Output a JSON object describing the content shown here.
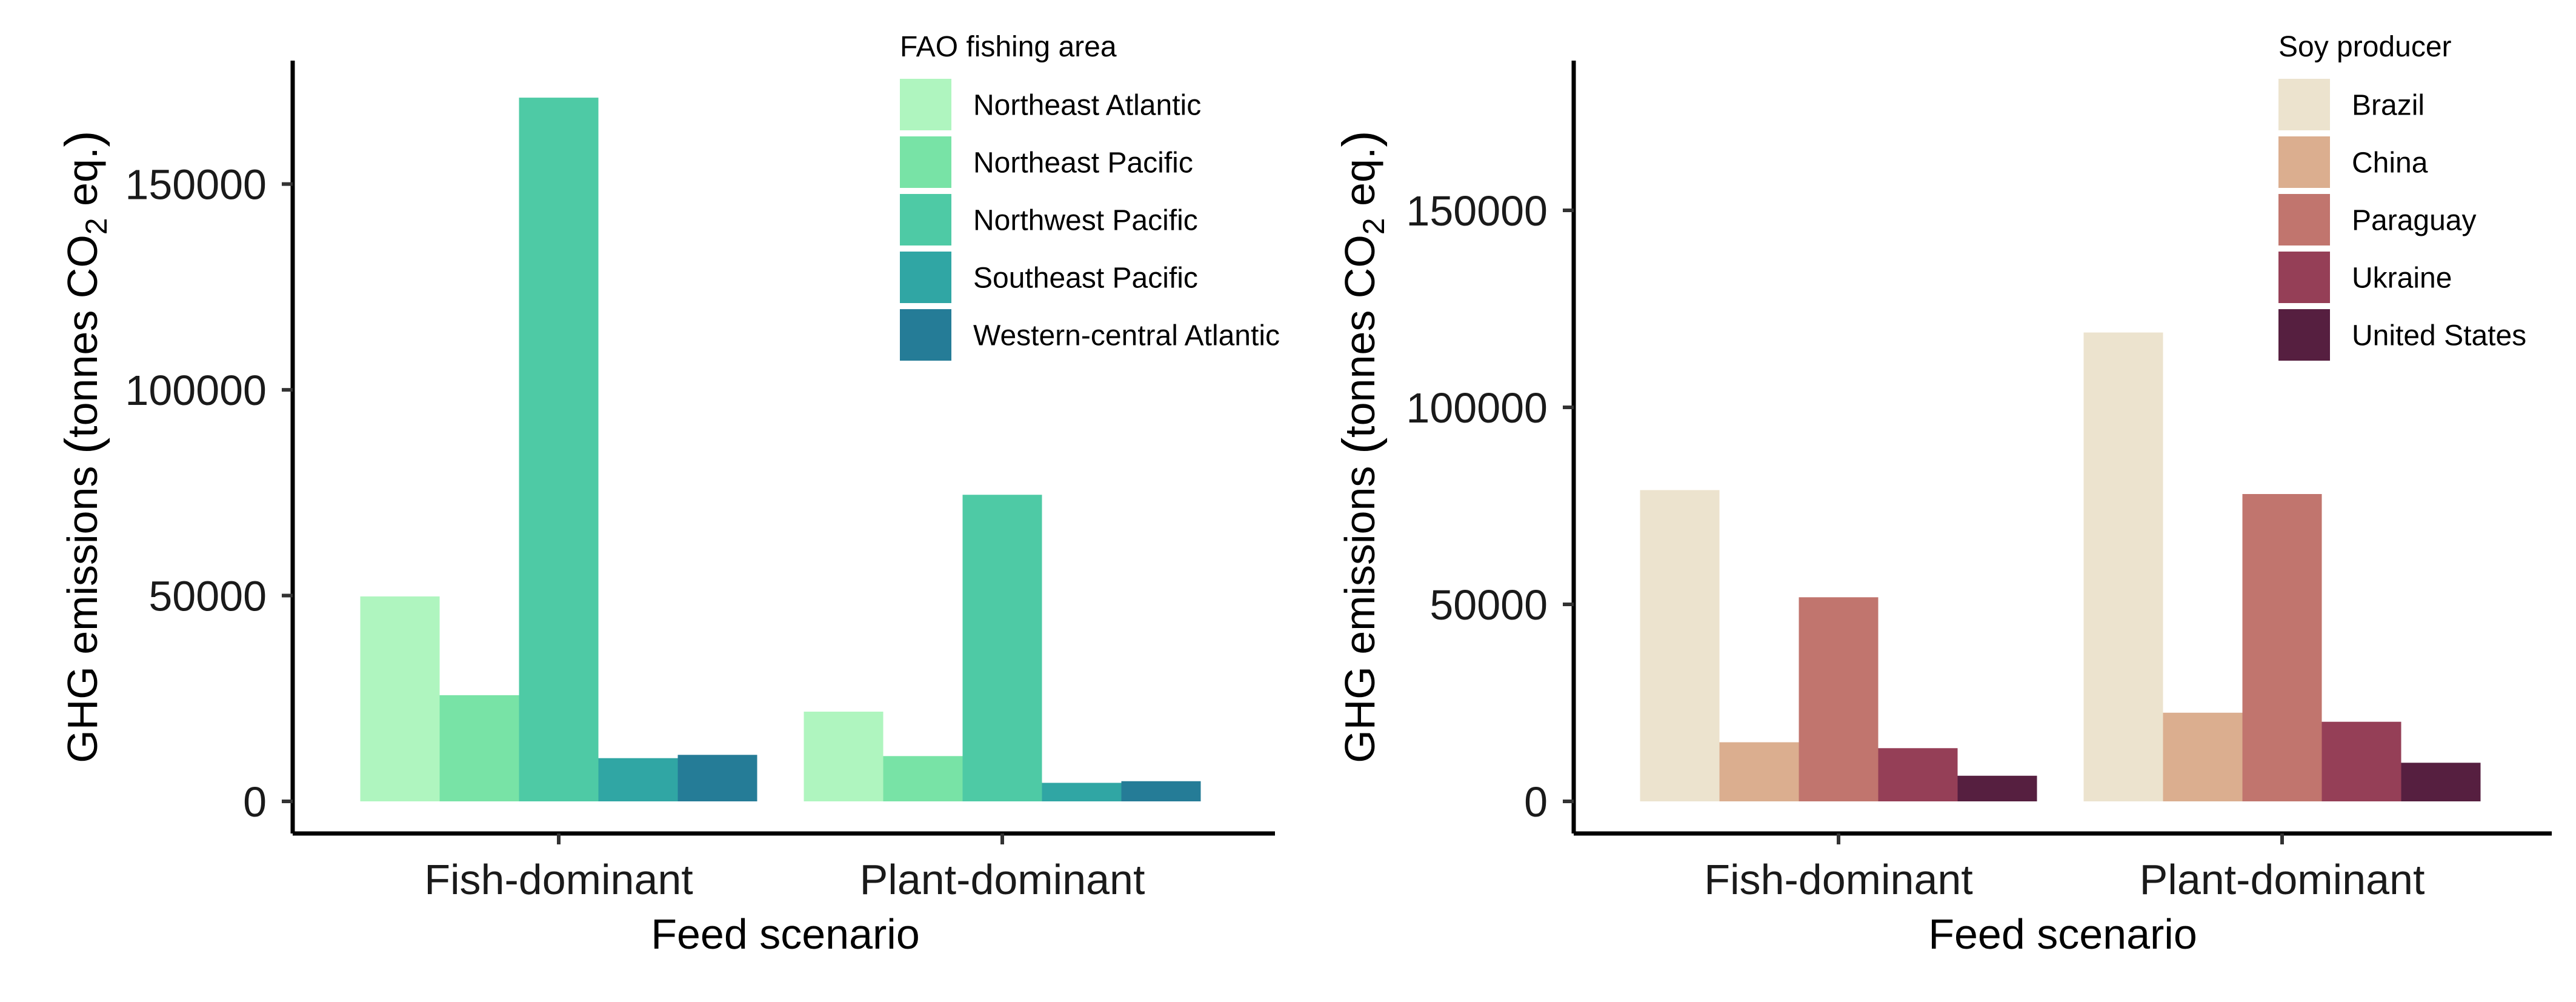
{
  "chart_data": [
    {
      "type": "bar",
      "xlabel": "Feed scenario",
      "ylabel_prefix": "GHG emissions",
      "ylabel_unit_pre": "tonnes CO",
      "ylabel_unit_sub": "2",
      "ylabel_unit_post": " eq.",
      "categories": [
        "Fish-dominant",
        "Plant-dominant"
      ],
      "ylim": [
        0,
        180000
      ],
      "yticks": [
        0,
        50000,
        100000,
        150000
      ],
      "ytick_labels": [
        "0",
        "50000",
        "100000",
        "150000"
      ],
      "legend_title": "FAO fishing area",
      "legend_position": "top-right",
      "grid": false,
      "series": [
        {
          "name": "Northeast Atlantic",
          "color": "#aff5bf",
          "values": [
            49800,
            21800
          ]
        },
        {
          "name": "Northeast Pacific",
          "color": "#78e3a6",
          "values": [
            25800,
            11000
          ]
        },
        {
          "name": "Northwest Pacific",
          "color": "#4ecaa5",
          "values": [
            171000,
            74500
          ]
        },
        {
          "name": "Southeast Pacific",
          "color": "#30a6a4",
          "values": [
            10500,
            4500
          ]
        },
        {
          "name": "Western-central Atlantic",
          "color": "#257c97",
          "values": [
            11300,
            4900
          ]
        }
      ]
    },
    {
      "type": "bar",
      "xlabel": "Feed scenario",
      "ylabel_prefix": "GHG emissions",
      "ylabel_unit_pre": "tonnes CO",
      "ylabel_unit_sub": "2",
      "ylabel_unit_post": " eq.",
      "categories": [
        "Fish-dominant",
        "Plant-dominant"
      ],
      "ylim": [
        0,
        188000
      ],
      "yticks": [
        0,
        50000,
        100000,
        150000
      ],
      "ytick_labels": [
        "0",
        "50000",
        "100000",
        "150000"
      ],
      "legend_title": "Soy producer",
      "legend_position": "top-right",
      "grid": false,
      "series": [
        {
          "name": "Brazil",
          "color": "#ece3ce",
          "values": [
            79000,
            119000
          ]
        },
        {
          "name": "China",
          "color": "#dbae8f",
          "values": [
            15000,
            22500
          ]
        },
        {
          "name": "Paraguay",
          "color": "#c1756e",
          "values": [
            51800,
            78000
          ]
        },
        {
          "name": "Ukraine",
          "color": "#953f57",
          "values": [
            13500,
            20200
          ]
        },
        {
          "name": "United States",
          "color": "#561f40",
          "values": [
            6500,
            9800
          ]
        }
      ]
    }
  ]
}
